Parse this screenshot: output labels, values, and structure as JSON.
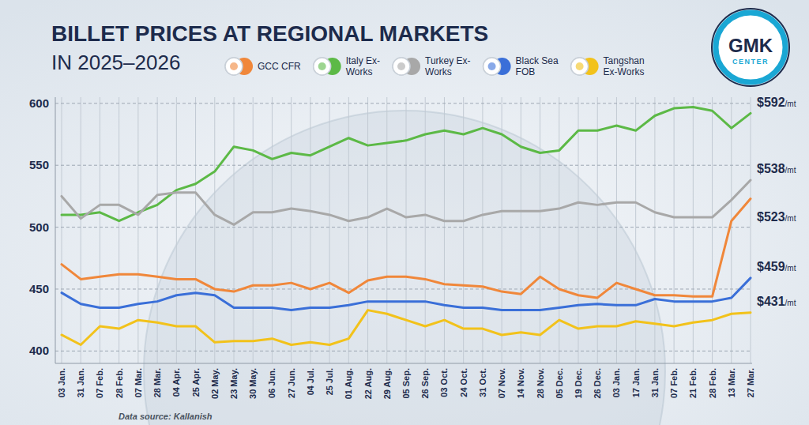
{
  "chart_data": {
    "type": "line",
    "title": "BILLET PRICES AT REGIONAL MARKETS",
    "subtitle": "IN 2025–2026",
    "source": "Data source: Kallanish",
    "categories": [
      "03 Jan.",
      "31 Jan.",
      "07 Feb.",
      "28 Feb.",
      "07 Mar.",
      "28 Mar.",
      "04 Apr.",
      "25 Apr.",
      "02 May.",
      "23 May.",
      "30 May.",
      "06 Jun.",
      "27 Jun.",
      "04 Jul.",
      "25 Jul.",
      "01 Aug.",
      "22 Aug.",
      "29 Aug.",
      "05 Sep.",
      "26 Sep.",
      "03 Oct.",
      "24 Oct.",
      "31 Oct.",
      "07 Nov.",
      "14 Nov.",
      "28 Nov.",
      "05 Dec.",
      "19 Dec.",
      "26 Dec.",
      "03 Jan.",
      "17 Jan.",
      "31 Jan.",
      "07 Feb.",
      "21 Feb.",
      "28 Feb.",
      "13 Mar.",
      "27 Mar."
    ],
    "series": [
      {
        "name": "GCC CFR",
        "color": "#f0873a",
        "values": [
          470,
          458,
          460,
          462,
          462,
          460,
          458,
          458,
          450,
          448,
          453,
          453,
          455,
          450,
          455,
          447,
          457,
          460,
          460,
          458,
          454,
          453,
          452,
          448,
          446,
          460,
          450,
          445,
          443,
          455,
          450,
          445,
          445,
          444,
          444,
          505,
          523
        ],
        "value_labels": [
          null,
          null,
          null,
          null,
          null,
          null,
          null,
          null,
          null,
          null,
          null,
          null,
          null,
          null,
          null,
          null,
          null,
          null,
          null,
          null,
          null,
          null,
          null,
          null,
          null,
          null,
          null,
          null,
          null,
          null,
          null,
          null,
          null,
          null,
          null,
          null,
          "$523/mt"
        ]
      },
      {
        "name": "Italy Ex-Works",
        "color": "#5cb946",
        "values": [
          510,
          510,
          512,
          505,
          512,
          518,
          530,
          535,
          545,
          565,
          562,
          555,
          560,
          558,
          565,
          572,
          566,
          568,
          570,
          575,
          578,
          575,
          580,
          575,
          565,
          560,
          562,
          578,
          578,
          582,
          578,
          590,
          596,
          597,
          594,
          580,
          592
        ],
        "value_labels": [
          null,
          null,
          null,
          null,
          null,
          null,
          null,
          null,
          null,
          null,
          null,
          null,
          null,
          null,
          null,
          null,
          null,
          null,
          null,
          null,
          null,
          null,
          null,
          null,
          null,
          null,
          null,
          null,
          null,
          null,
          null,
          null,
          null,
          null,
          null,
          null,
          "$592/mt"
        ]
      },
      {
        "name": "Turkey Ex-Works",
        "color": "#a8a8a8",
        "values": [
          525,
          507,
          518,
          518,
          510,
          526,
          528,
          528,
          510,
          502,
          512,
          512,
          515,
          513,
          510,
          505,
          508,
          515,
          508,
          510,
          505,
          505,
          510,
          513,
          513,
          513,
          515,
          520,
          518,
          520,
          520,
          512,
          508,
          508,
          508,
          522,
          538
        ],
        "value_labels": [
          null,
          null,
          null,
          null,
          null,
          null,
          null,
          null,
          null,
          null,
          null,
          null,
          null,
          null,
          null,
          null,
          null,
          null,
          null,
          null,
          null,
          null,
          null,
          null,
          null,
          null,
          null,
          null,
          null,
          null,
          null,
          null,
          null,
          null,
          null,
          null,
          "$538/mt"
        ]
      },
      {
        "name": "Black Sea FOB",
        "color": "#3a6fd8",
        "values": [
          447,
          438,
          435,
          435,
          438,
          440,
          445,
          447,
          445,
          435,
          435,
          435,
          433,
          435,
          435,
          437,
          440,
          440,
          440,
          440,
          437,
          435,
          435,
          433,
          433,
          433,
          435,
          437,
          438,
          437,
          437,
          442,
          440,
          440,
          440,
          443,
          459
        ],
        "value_labels": [
          null,
          null,
          null,
          null,
          null,
          null,
          null,
          null,
          null,
          null,
          null,
          null,
          null,
          null,
          null,
          null,
          null,
          null,
          null,
          null,
          null,
          null,
          null,
          null,
          null,
          null,
          null,
          null,
          null,
          null,
          null,
          null,
          null,
          null,
          null,
          null,
          "$459/mt"
        ]
      },
      {
        "name": "Tangshan Ex-Works",
        "color": "#f2c21b",
        "values": [
          413,
          405,
          420,
          418,
          425,
          423,
          420,
          420,
          407,
          408,
          408,
          410,
          405,
          407,
          405,
          410,
          433,
          430,
          425,
          420,
          425,
          418,
          418,
          413,
          415,
          413,
          425,
          418,
          420,
          420,
          424,
          422,
          420,
          423,
          425,
          430,
          431
        ],
        "value_labels": [
          null,
          null,
          null,
          null,
          null,
          null,
          null,
          null,
          null,
          null,
          null,
          null,
          null,
          null,
          null,
          null,
          null,
          null,
          null,
          null,
          null,
          null,
          null,
          null,
          null,
          null,
          null,
          null,
          null,
          null,
          null,
          null,
          null,
          null,
          null,
          null,
          "$431/mt"
        ]
      }
    ],
    "ylim": [
      390,
      605
    ],
    "yticks": [
      400,
      450,
      500,
      550,
      600
    ],
    "grid": true,
    "legend": "top"
  },
  "logo": {
    "text": "GMK",
    "subtext": "CENTER"
  }
}
